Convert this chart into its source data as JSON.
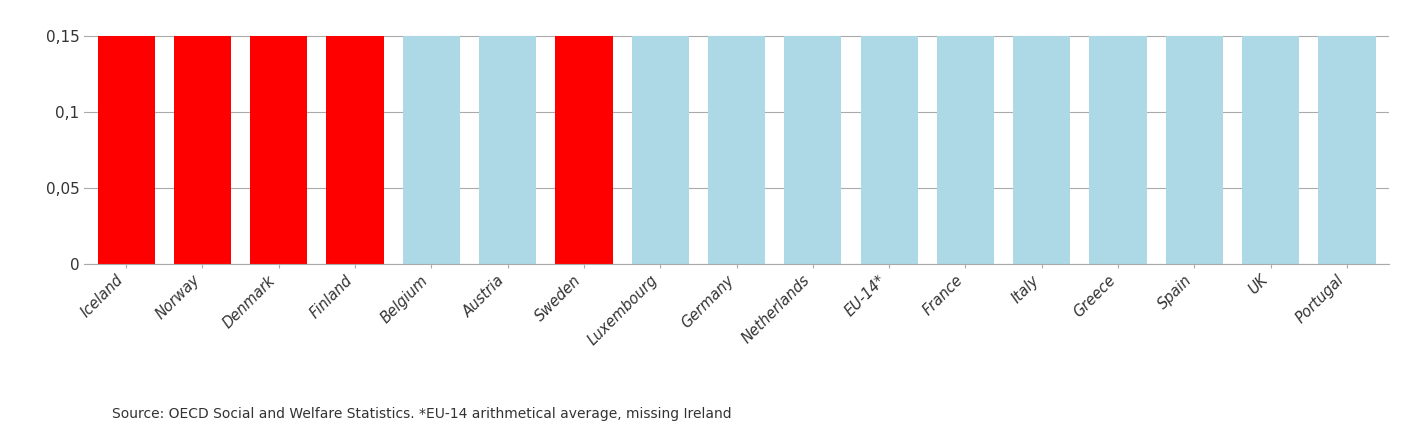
{
  "categories": [
    "Iceland",
    "Norway",
    "Denmark",
    "Finland",
    "Belgium",
    "Austria",
    "Sweden",
    "Luxembourg",
    "Germany",
    "Netherlands",
    "EU-14*",
    "France",
    "Italy",
    "Greece",
    "Spain",
    "UK",
    "Portugal"
  ],
  "values": [
    0.15,
    0.15,
    0.15,
    0.15,
    0.15,
    0.15,
    0.15,
    0.15,
    0.15,
    0.15,
    0.15,
    0.15,
    0.15,
    0.15,
    0.15,
    0.15,
    0.15
  ],
  "bar_colors": [
    "#FF0000",
    "#FF0000",
    "#FF0000",
    "#FF0000",
    "#ADD8E6",
    "#ADD8E6",
    "#FF0000",
    "#ADD8E6",
    "#ADD8E6",
    "#ADD8E6",
    "#ADD8E6",
    "#ADD8E6",
    "#ADD8E6",
    "#ADD8E6",
    "#ADD8E6",
    "#ADD8E6",
    "#ADD8E6"
  ],
  "ylim": [
    0,
    0.168
  ],
  "yticks": [
    0,
    0.05,
    0.1,
    0.15
  ],
  "ytick_labels": [
    "0",
    "0,05",
    "0,1",
    "0,15"
  ],
  "footnote": "Source: OECD Social and Welfare Statistics. *EU-14 arithmetical average, missing Ireland",
  "bar_width": 0.75,
  "background_color": "#FFFFFF",
  "grid_color": "#AAAAAA",
  "label_fontsize": 10.5,
  "footnote_fontsize": 10,
  "ytick_fontsize": 11
}
